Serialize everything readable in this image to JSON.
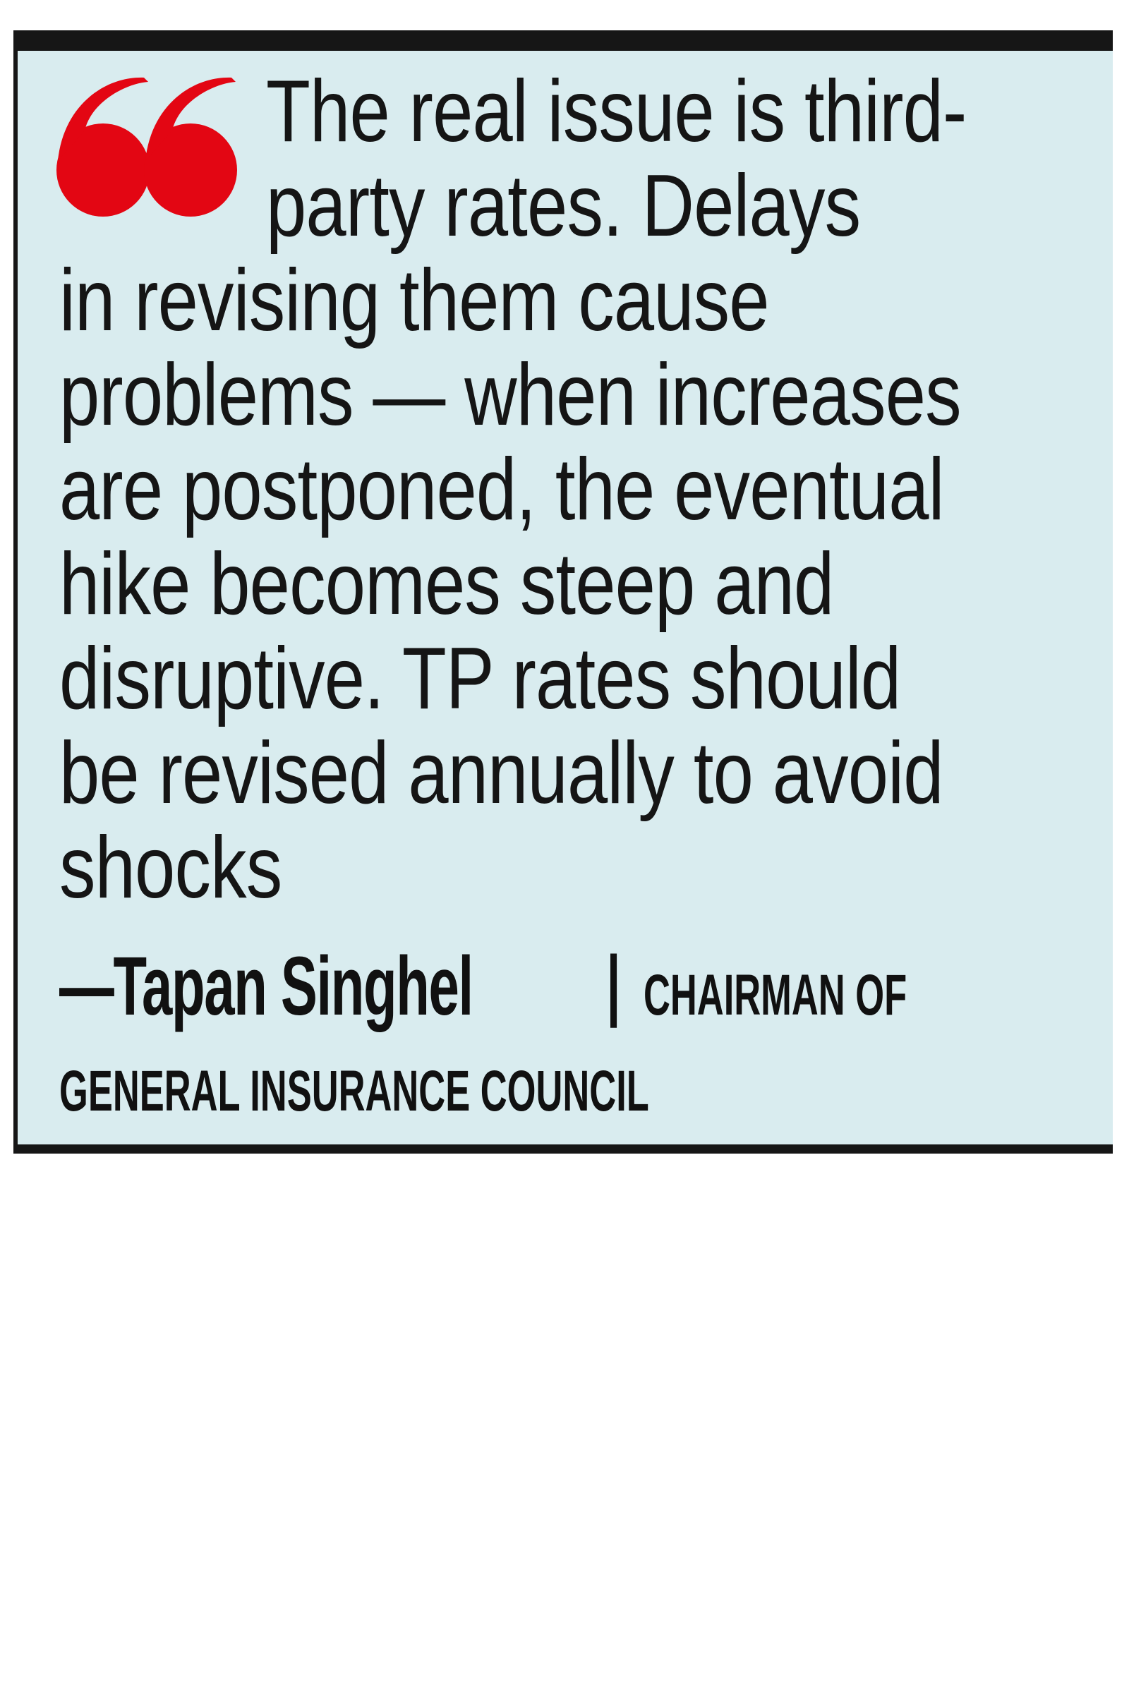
{
  "quote": {
    "icon": "quote-mark-icon",
    "accent_color": "#e30613",
    "background_color": "#d9ecef",
    "lines": [
      "The real issue is third-",
      "party rates. Delays",
      "in revising them cause",
      "problems — when increases",
      "are postponed, the eventual",
      "hike becomes steep and",
      "disruptive. TP rates should",
      "be revised annually to avoid",
      "shocks"
    ]
  },
  "attribution": {
    "name": "—Tapan Singhel",
    "separator": "|",
    "role_line1": "CHAIRMAN OF",
    "role_line2": "GENERAL INSURANCE COUNCIL"
  }
}
